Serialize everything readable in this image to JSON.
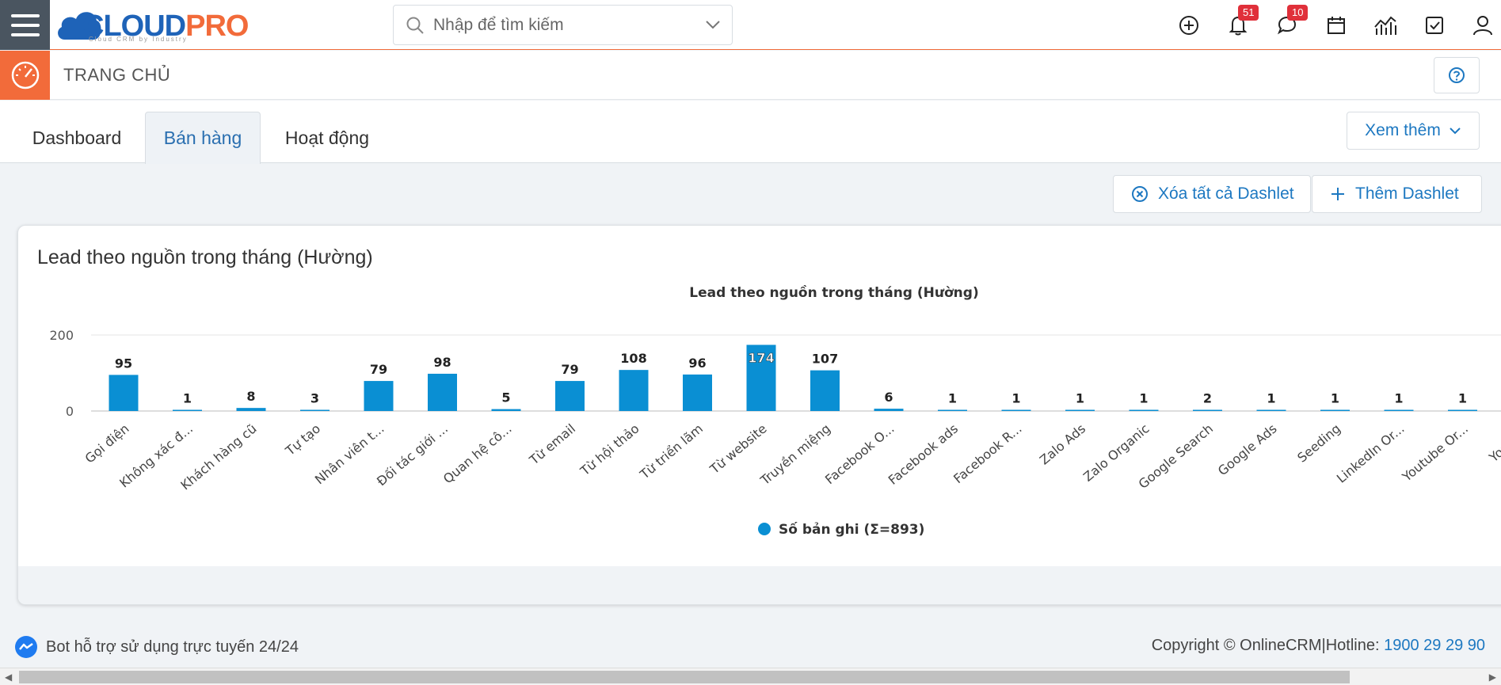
{
  "app": {
    "logo_cloud": "CLOUD",
    "logo_pro": "PRO",
    "logo_sub": "Cloud CRM by Industry"
  },
  "search": {
    "placeholder": "Nhập để tìm kiếm"
  },
  "notifications": {
    "bell_count": "51",
    "chat_count": "10"
  },
  "page": {
    "title": "TRANG CHỦ"
  },
  "tabs": [
    {
      "label": "Dashboard",
      "active": false
    },
    {
      "label": "Bán hàng",
      "active": true
    },
    {
      "label": "Hoạt động",
      "active": false
    }
  ],
  "toolbar": {
    "more_label": "Xem thêm",
    "clear_label": "Xóa tất cả Dashlet",
    "add_label": "Thêm Dashlet"
  },
  "dashlet": {
    "title": "Lead theo nguồn trong tháng (Hường)"
  },
  "chart_data": {
    "type": "bar",
    "title": "Lead theo nguồn trong tháng (Hường)",
    "xlabel": "",
    "ylabel": "",
    "ylim": [
      0,
      200
    ],
    "yticks": [
      "0",
      "200"
    ],
    "grid": true,
    "legend_position": "bottom",
    "color": "#0a8fd3",
    "categories": [
      "Gọi điện",
      "Không xác đ...",
      "Khách hàng cũ",
      "Tự tạo",
      "Nhân viên t...",
      "Đối tác giới ...",
      "Quan hệ cô...",
      "Từ email",
      "Từ hội thảo",
      "Từ triển lãm",
      "Từ website",
      "Truyền miệng",
      "Facebook O...",
      "Facebook ads",
      "Facebook R...",
      "Zalo Ads",
      "Zalo Organic",
      "Google Search",
      "Google Ads",
      "Seeding",
      "LinkedIn Or...",
      "Youtube Or...",
      "Youtube"
    ],
    "series": [
      {
        "name": "Số bản ghi (Σ=893)",
        "values": [
          95,
          1,
          8,
          3,
          79,
          98,
          5,
          79,
          108,
          96,
          174,
          107,
          6,
          1,
          1,
          1,
          1,
          2,
          1,
          1,
          1,
          1,
          null
        ]
      }
    ]
  },
  "footer": {
    "bot_text": "Bot hỗ trợ sử dụng trực tuyến 24/24",
    "copyright": "Copyright © OnlineCRM|Hotline: ",
    "hotline": "1900 29 29 90"
  }
}
